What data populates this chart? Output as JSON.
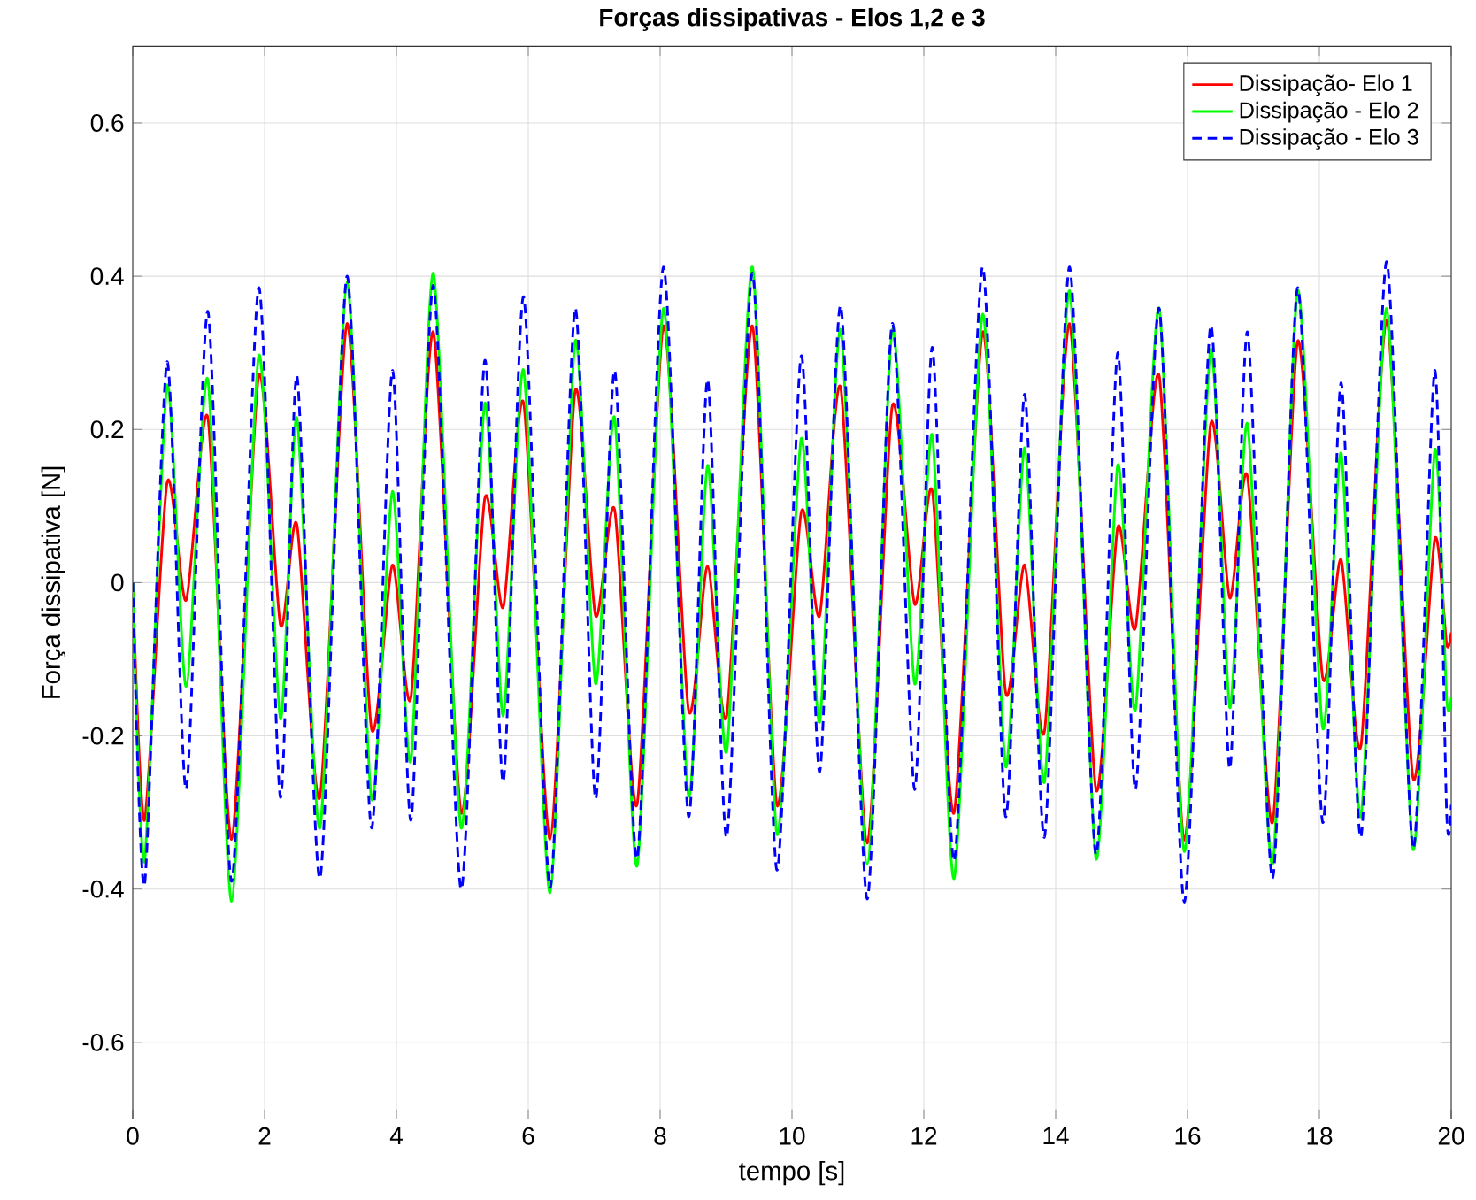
{
  "chart_data": {
    "type": "line",
    "title": "Forças dissipativas - Elos 1,2 e 3",
    "xlabel": "tempo [s]",
    "ylabel": "Força dissipativa [N]",
    "xlim": [
      0,
      20
    ],
    "xticks": [
      0,
      2,
      4,
      6,
      8,
      10,
      12,
      14,
      16,
      18,
      20
    ],
    "ylim": [
      -0.7,
      0.7
    ],
    "yticks": [
      -0.6,
      -0.4,
      -0.2,
      0,
      0.2,
      0.4,
      0.6
    ],
    "grid": true,
    "legend": "top right",
    "x": [
      0,
      0.18,
      0.52,
      0.81,
      1.14,
      1.5,
      1.91,
      2.24,
      2.49,
      2.84,
      3.25,
      3.62,
      3.94,
      4.22,
      4.56,
      4.98,
      5.34,
      5.62,
      5.93,
      6.33,
      6.71,
      7.02,
      7.31,
      7.65,
      8.05,
      8.43,
      8.72,
      9.01,
      9.4,
      9.77,
      10.14,
      10.42,
      10.74,
      11.14,
      11.52,
      11.86,
      12.13,
      12.46,
      12.89,
      13.24,
      13.53,
      13.83,
      14.21,
      14.61,
      14.94,
      15.21,
      15.57,
      15.95,
      16.35,
      16.64,
      16.91,
      17.29,
      17.67,
      18.05,
      18.33,
      18.63,
      19.02,
      19.42,
      19.75,
      19.93,
      20
    ],
    "series": [
      {
        "name": "Dissipação- Elo 1",
        "color": "#ff0000",
        "line_style": "solid",
        "values": [
          0,
          -0.31,
          0.13,
          -0.023,
          0.215,
          -0.335,
          0.27,
          -0.055,
          0.076,
          -0.28,
          0.338,
          -0.19,
          0.023,
          -0.15,
          0.327,
          -0.3,
          0.11,
          -0.032,
          0.234,
          -0.335,
          0.25,
          -0.043,
          0.095,
          -0.29,
          0.335,
          -0.166,
          0.022,
          -0.174,
          0.335,
          -0.29,
          0.092,
          -0.043,
          0.254,
          -0.34,
          0.23,
          -0.028,
          0.119,
          -0.3,
          0.327,
          -0.143,
          0.023,
          -0.194,
          0.338,
          -0.27,
          0.072,
          -0.059,
          0.27,
          -0.336,
          0.207,
          -0.02,
          0.138,
          -0.313,
          0.315,
          -0.124,
          0.03,
          -0.213,
          0.342,
          -0.255,
          0.057,
          -0.08,
          -0.065
        ]
      },
      {
        "name": "Dissipação - Elo 2",
        "color": "#00ff00",
        "line_style": "solid",
        "values": [
          0,
          -0.363,
          0.257,
          -0.136,
          0.265,
          -0.416,
          0.296,
          -0.178,
          0.215,
          -0.32,
          0.392,
          -0.282,
          0.119,
          -0.232,
          0.404,
          -0.32,
          0.234,
          -0.174,
          0.277,
          -0.405,
          0.315,
          -0.132,
          0.215,
          -0.37,
          0.358,
          -0.278,
          0.153,
          -0.22,
          0.412,
          -0.328,
          0.188,
          -0.182,
          0.33,
          -0.367,
          0.33,
          -0.132,
          0.192,
          -0.386,
          0.35,
          -0.24,
          0.176,
          -0.26,
          0.381,
          -0.36,
          0.153,
          -0.166,
          0.358,
          -0.351,
          0.304,
          -0.163,
          0.207,
          -0.367,
          0.381,
          -0.19,
          0.169,
          -0.305,
          0.358,
          -0.348,
          0.173,
          -0.15,
          -0.15
        ]
      },
      {
        "name": "Dissipação - Elo 3",
        "color": "#0000ff",
        "line_style": "dashed",
        "values": [
          0,
          -0.394,
          0.288,
          -0.27,
          0.354,
          -0.39,
          0.385,
          -0.28,
          0.27,
          -0.386,
          0.4,
          -0.32,
          0.277,
          -0.31,
          0.388,
          -0.4,
          0.29,
          -0.26,
          0.373,
          -0.398,
          0.358,
          -0.282,
          0.277,
          -0.36,
          0.412,
          -0.305,
          0.265,
          -0.332,
          0.404,
          -0.375,
          0.296,
          -0.247,
          0.361,
          -0.413,
          0.338,
          -0.27,
          0.307,
          -0.363,
          0.412,
          -0.305,
          0.246,
          -0.332,
          0.412,
          -0.355,
          0.3,
          -0.27,
          0.358,
          -0.417,
          0.335,
          -0.243,
          0.327,
          -0.386,
          0.385,
          -0.313,
          0.261,
          -0.332,
          0.419,
          -0.347,
          0.277,
          -0.3,
          -0.29
        ]
      }
    ]
  }
}
